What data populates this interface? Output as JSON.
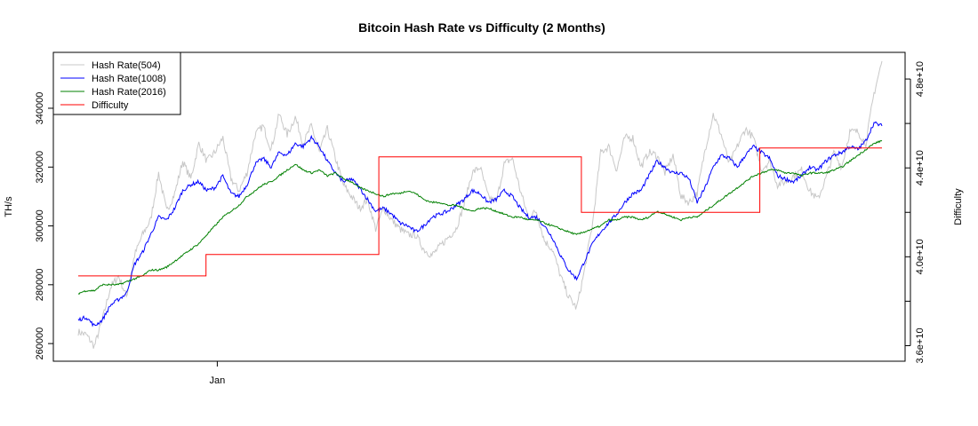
{
  "chart_data": {
    "type": "line",
    "title": "Bitcoin Hash Rate vs Difficulty (2 Months)",
    "xlabel": "",
    "ylabel": "TH/s",
    "ylabel_right": "Difficulty",
    "x_ticks": [
      "Jan"
    ],
    "y_ticks": [
      "260000",
      "280000",
      "300000",
      "320000",
      "340000"
    ],
    "y_right_ticks": [
      "3.6e+10",
      "4.0e+10",
      "4.4e+10",
      "4.8e+10"
    ],
    "ylim": [
      254000,
      359000
    ],
    "ylim_right": [
      35300000000,
      49200000000
    ],
    "x_unit": "day",
    "x": [
      0,
      1,
      2,
      3,
      4,
      5,
      6,
      7,
      8,
      9,
      10,
      11,
      12,
      13,
      14,
      15,
      16,
      17,
      18,
      19,
      20,
      21,
      22,
      23,
      24,
      25,
      26,
      27,
      28,
      29,
      30,
      31,
      32,
      33,
      34,
      35,
      36,
      37,
      38,
      39,
      40,
      41,
      42,
      43,
      44,
      45,
      46,
      47,
      48,
      49,
      50,
      51,
      52,
      53,
      54,
      55,
      56,
      57,
      58,
      59,
      60,
      61,
      62,
      63,
      64,
      65,
      66,
      67,
      68,
      69,
      70,
      71,
      72,
      73,
      74,
      75,
      76,
      77,
      78,
      79,
      80,
      81,
      82,
      83,
      84,
      85,
      86,
      87,
      88,
      89,
      90,
      91,
      92,
      93,
      94,
      95,
      96,
      97,
      98,
      99,
      100
    ],
    "x_tick_positions": [
      17.3
    ],
    "xlim": [
      -3,
      103
    ],
    "legend_position": "top-left",
    "grid": false,
    "series": [
      {
        "name": "Hash Rate(504)",
        "color": "#c8c8c8",
        "axis": "left",
        "values": [
          264000,
          263000,
          259000,
          268000,
          279000,
          283000,
          276000,
          290000,
          297000,
          302000,
          318000,
          305000,
          311000,
          322000,
          316000,
          328000,
          322000,
          325000,
          330000,
          316000,
          312000,
          318000,
          331000,
          334000,
          326000,
          338000,
          331000,
          337000,
          328000,
          334000,
          325000,
          333000,
          323000,
          314000,
          310000,
          306000,
          309000,
          299000,
          306000,
          302000,
          299000,
          297000,
          297000,
          292000,
          290000,
          293000,
          296000,
          299000,
          307000,
          318000,
          320000,
          310000,
          308000,
          321000,
          323000,
          312000,
          303000,
          305000,
          295000,
          292000,
          283000,
          276000,
          272000,
          285000,
          301000,
          325000,
          327000,
          319000,
          330000,
          330000,
          320000,
          325000,
          324000,
          318000,
          324000,
          310000,
          308000,
          311000,
          326000,
          338000,
          331000,
          321000,
          327000,
          333000,
          330000,
          319000,
          322000,
          314000,
          315000,
          317000,
          319000,
          312000,
          309000,
          316000,
          325000,
          320000,
          332000,
          332000,
          328000,
          345000,
          356000
        ]
      },
      {
        "name": "Hash Rate(1008)",
        "color": "#0000ff",
        "axis": "left",
        "values": [
          268000,
          269000,
          266000,
          268000,
          273000,
          275000,
          277000,
          287000,
          291000,
          297000,
          303000,
          302000,
          306000,
          312000,
          314000,
          315000,
          312000,
          313000,
          317000,
          311000,
          310000,
          314000,
          321000,
          323000,
          320000,
          325000,
          324000,
          328000,
          327000,
          330000,
          327000,
          322000,
          318000,
          315000,
          316000,
          313000,
          309000,
          305000,
          306000,
          304000,
          301000,
          300000,
          298000,
          300000,
          303000,
          304000,
          305000,
          307000,
          309000,
          312000,
          311000,
          308000,
          309000,
          312000,
          310000,
          306000,
          303000,
          303000,
          300000,
          296000,
          290000,
          285000,
          282000,
          288000,
          294000,
          298000,
          301000,
          304000,
          308000,
          311000,
          312000,
          317000,
          322000,
          320000,
          318000,
          318000,
          316000,
          308000,
          313000,
          320000,
          324000,
          323000,
          320000,
          324000,
          327000,
          325000,
          323000,
          317000,
          316000,
          315000,
          317000,
          320000,
          319000,
          322000,
          324000,
          325000,
          327000,
          326000,
          329000,
          335000,
          334000
        ]
      },
      {
        "name": "Hash Rate(2016)",
        "color": "#008000",
        "axis": "left",
        "values": [
          277000,
          278000,
          278000,
          280000,
          280000,
          280000,
          281000,
          282000,
          283000,
          285000,
          285000,
          286000,
          288000,
          290000,
          292000,
          294000,
          297000,
          300000,
          303000,
          305000,
          307000,
          310000,
          312000,
          314000,
          315000,
          317000,
          319000,
          321000,
          319000,
          318000,
          319000,
          317000,
          318000,
          316000,
          315000,
          313000,
          312000,
          311000,
          310000,
          311000,
          311000,
          312000,
          311000,
          309000,
          308000,
          308000,
          307000,
          307000,
          306000,
          305000,
          306000,
          306000,
          305000,
          304000,
          303000,
          303000,
          302000,
          302000,
          301000,
          300000,
          299000,
          298000,
          297000,
          298000,
          299000,
          300000,
          302000,
          302000,
          303000,
          303000,
          302000,
          303000,
          305000,
          304000,
          303000,
          302000,
          303000,
          303000,
          305000,
          307000,
          309000,
          311000,
          313000,
          315000,
          317000,
          318000,
          319000,
          319000,
          318000,
          318000,
          317000,
          318000,
          318000,
          318000,
          319000,
          320000,
          322000,
          324000,
          326000,
          328000,
          329000
        ]
      },
      {
        "name": "Difficulty",
        "color": "#ff0000",
        "axis": "right",
        "step": true,
        "x": [
          0,
          15.9,
          15.9,
          37.4,
          37.4,
          62.6,
          62.6,
          84.8,
          84.8,
          100
        ],
        "values": [
          39140000000,
          39140000000,
          40100000000,
          40100000000,
          44500000000,
          44500000000,
          42000000000,
          42000000000,
          44900000000,
          44900000000
        ]
      }
    ]
  }
}
